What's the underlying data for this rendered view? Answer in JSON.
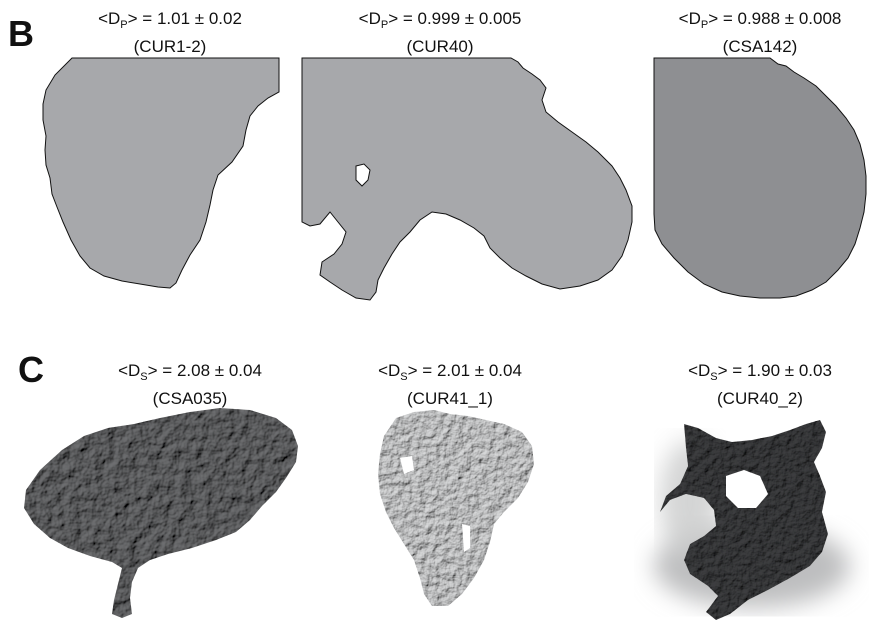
{
  "panel_b": {
    "letter": "B",
    "items": [
      {
        "label": "D",
        "sub": "P",
        "value": "1.01 ± 0.02",
        "id": "(CUR1-2)"
      },
      {
        "label": "D",
        "sub": "P",
        "value": "0.999 ± 0.005",
        "id": "(CUR40)"
      },
      {
        "label": "D",
        "sub": "P",
        "value": "0.988 ± 0.008",
        "id": "(CSA142)"
      }
    ]
  },
  "panel_c": {
    "letter": "C",
    "items": [
      {
        "label": "D",
        "sub": "S",
        "value": "2.08 ± 0.04",
        "id": "(CSA035)"
      },
      {
        "label": "D",
        "sub": "S",
        "value": "2.01 ± 0.04",
        "id": "(CUR41_1)"
      },
      {
        "label": "D",
        "sub": "S",
        "value": "1.90 ± 0.03",
        "id": "(CUR40_2)"
      }
    ]
  },
  "colors": {
    "silhouette_1": "#a7a8ab",
    "silhouette_2": "#a7a8ab",
    "silhouette_3": "#8e8f92",
    "surface_dark": "#3e3f41",
    "surface_light": "#d8d9da"
  }
}
